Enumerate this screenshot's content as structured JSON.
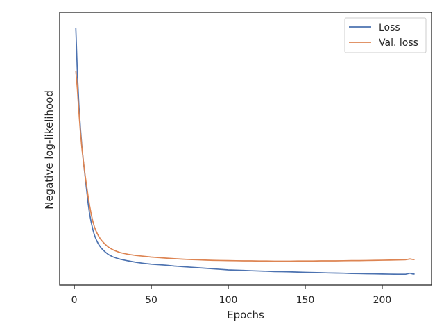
{
  "chart_data": {
    "type": "line",
    "title": "",
    "xlabel": "Epochs",
    "ylabel": "Negative log-likelihood",
    "xlim": [
      -9.5,
      232
    ],
    "ylim": [
      0,
      100
    ],
    "y_ticks_shown": false,
    "x_ticks": [
      0,
      50,
      100,
      150,
      200
    ],
    "grid": false,
    "legend_position": "top-right",
    "series": [
      {
        "name": "Loss",
        "color": "#4c72b0",
        "points": [
          [
            1,
            94.2
          ],
          [
            2,
            78
          ],
          [
            3,
            66
          ],
          [
            4,
            57.5
          ],
          [
            5,
            50.5
          ],
          [
            6,
            45
          ],
          [
            7,
            40
          ],
          [
            8,
            35
          ],
          [
            9,
            30
          ],
          [
            10,
            26
          ],
          [
            11,
            23
          ],
          [
            12,
            20.5
          ],
          [
            13,
            18.5
          ],
          [
            14,
            17
          ],
          [
            15,
            15.8
          ],
          [
            16,
            14.8
          ],
          [
            17,
            14
          ],
          [
            18,
            13.3
          ],
          [
            20,
            12.2
          ],
          [
            22,
            11.3
          ],
          [
            25,
            10.4
          ],
          [
            28,
            9.8
          ],
          [
            30,
            9.5
          ],
          [
            35,
            8.9
          ],
          [
            40,
            8.4
          ],
          [
            45,
            8.0
          ],
          [
            50,
            7.7
          ],
          [
            55,
            7.5
          ],
          [
            60,
            7.3
          ],
          [
            65,
            7.0
          ],
          [
            70,
            6.8
          ],
          [
            75,
            6.6
          ],
          [
            80,
            6.4
          ],
          [
            85,
            6.2
          ],
          [
            90,
            6.0
          ],
          [
            95,
            5.8
          ],
          [
            100,
            5.6
          ],
          [
            105,
            5.5
          ],
          [
            110,
            5.4
          ],
          [
            115,
            5.3
          ],
          [
            120,
            5.2
          ],
          [
            125,
            5.1
          ],
          [
            130,
            5.0
          ],
          [
            135,
            4.95
          ],
          [
            140,
            4.9
          ],
          [
            145,
            4.8
          ],
          [
            150,
            4.7
          ],
          [
            155,
            4.65
          ],
          [
            160,
            4.6
          ],
          [
            165,
            4.5
          ],
          [
            170,
            4.45
          ],
          [
            175,
            4.4
          ],
          [
            180,
            4.3
          ],
          [
            185,
            4.25
          ],
          [
            190,
            4.2
          ],
          [
            195,
            4.15
          ],
          [
            200,
            4.1
          ],
          [
            205,
            4.05
          ],
          [
            210,
            4.0
          ],
          [
            215,
            4.0
          ],
          [
            218,
            4.4
          ],
          [
            220,
            4.1
          ],
          [
            221,
            4.1
          ]
        ]
      },
      {
        "name": "Val. loss",
        "color": "#dd8452",
        "points": [
          [
            1,
            78.6
          ],
          [
            2,
            72
          ],
          [
            3,
            63.5
          ],
          [
            4,
            56
          ],
          [
            5,
            50
          ],
          [
            6,
            45
          ],
          [
            7,
            40.5
          ],
          [
            8,
            36.5
          ],
          [
            9,
            32.5
          ],
          [
            10,
            29
          ],
          [
            11,
            26
          ],
          [
            12,
            23.5
          ],
          [
            13,
            21.5
          ],
          [
            14,
            20
          ],
          [
            15,
            18.8
          ],
          [
            16,
            17.8
          ],
          [
            17,
            16.9
          ],
          [
            18,
            16.2
          ],
          [
            20,
            15
          ],
          [
            22,
            14
          ],
          [
            25,
            13
          ],
          [
            28,
            12.3
          ],
          [
            30,
            11.9
          ],
          [
            35,
            11.3
          ],
          [
            40,
            10.9
          ],
          [
            45,
            10.6
          ],
          [
            50,
            10.3
          ],
          [
            55,
            10.1
          ],
          [
            60,
            9.9
          ],
          [
            65,
            9.7
          ],
          [
            70,
            9.55
          ],
          [
            75,
            9.4
          ],
          [
            80,
            9.3
          ],
          [
            85,
            9.2
          ],
          [
            90,
            9.1
          ],
          [
            95,
            9.05
          ],
          [
            100,
            9.0
          ],
          [
            105,
            8.95
          ],
          [
            110,
            8.9
          ],
          [
            115,
            8.9
          ],
          [
            120,
            8.85
          ],
          [
            125,
            8.85
          ],
          [
            130,
            8.8
          ],
          [
            135,
            8.8
          ],
          [
            140,
            8.8
          ],
          [
            145,
            8.85
          ],
          [
            150,
            8.85
          ],
          [
            155,
            8.85
          ],
          [
            160,
            8.9
          ],
          [
            165,
            8.9
          ],
          [
            170,
            8.9
          ],
          [
            175,
            8.95
          ],
          [
            180,
            9.0
          ],
          [
            185,
            9.0
          ],
          [
            190,
            9.05
          ],
          [
            195,
            9.1
          ],
          [
            200,
            9.15
          ],
          [
            205,
            9.2
          ],
          [
            210,
            9.25
          ],
          [
            215,
            9.3
          ],
          [
            218,
            9.6
          ],
          [
            220,
            9.4
          ],
          [
            221,
            9.4
          ]
        ]
      }
    ]
  }
}
